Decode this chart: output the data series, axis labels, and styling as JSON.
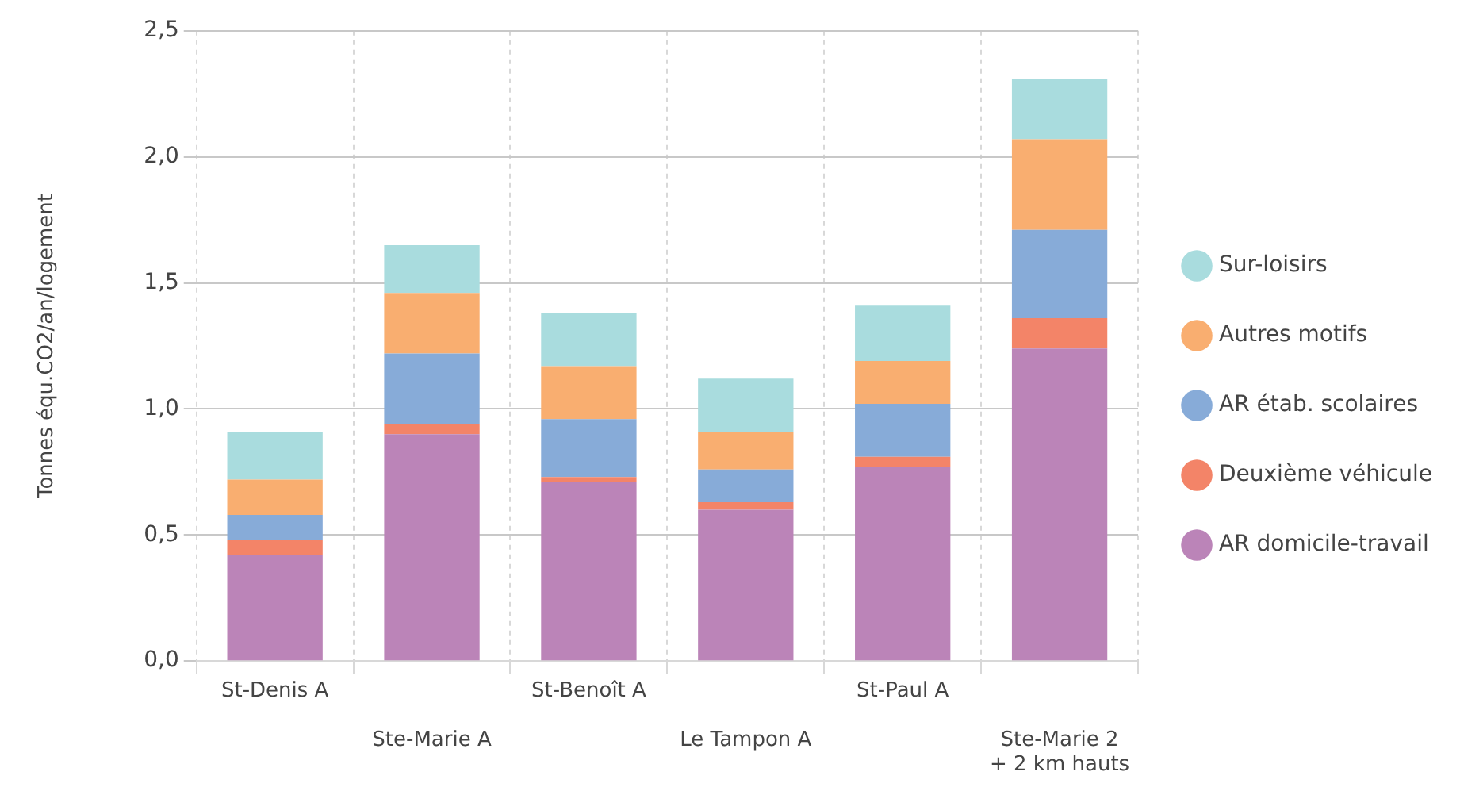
{
  "chart_data": {
    "type": "bar",
    "stacked": true,
    "ylabel": "Tonnes équ.CO2/an/logement",
    "categories": [
      "St-Denis A",
      "Ste-Marie A",
      "St-Benoît A",
      "Le Tampon A",
      "St-Paul A",
      "Ste-Marie 2\n+ 2 km hauts"
    ],
    "series": [
      {
        "name": "AR domicile-travail",
        "color": "#bb84b8",
        "values": [
          0.42,
          0.9,
          0.71,
          0.6,
          0.77,
          1.24
        ]
      },
      {
        "name": "Deuxième véhicule",
        "color": "#f38468",
        "values": [
          0.06,
          0.04,
          0.02,
          0.03,
          0.04,
          0.12
        ]
      },
      {
        "name": "AR étab. scolaires",
        "color": "#87abd8",
        "values": [
          0.1,
          0.28,
          0.23,
          0.13,
          0.21,
          0.35
        ]
      },
      {
        "name": "Autres motifs",
        "color": "#f9ae70",
        "values": [
          0.14,
          0.24,
          0.21,
          0.15,
          0.17,
          0.36
        ]
      },
      {
        "name": "Sur-loisirs",
        "color": "#a9dcde",
        "values": [
          0.19,
          0.19,
          0.21,
          0.21,
          0.22,
          0.24
        ]
      }
    ],
    "ylim": [
      0,
      2.5
    ],
    "yticks": [
      {
        "value": 0,
        "label": "0,0"
      },
      {
        "value": 0.5,
        "label": "0,5"
      },
      {
        "value": 1,
        "label": "1,0"
      },
      {
        "value": 1.5,
        "label": "1,5"
      },
      {
        "value": 2,
        "label": "2,0"
      },
      {
        "value": 2.5,
        "label": "2,5"
      }
    ],
    "grid": true,
    "legend": "right"
  }
}
